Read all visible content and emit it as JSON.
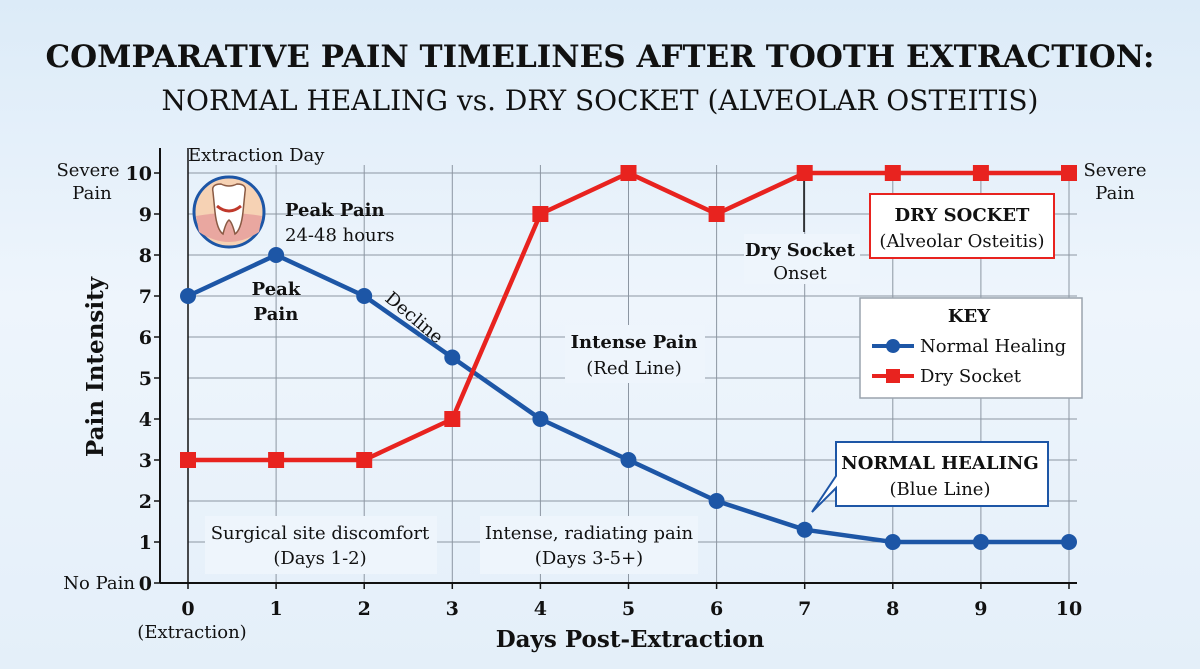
{
  "chart_data": {
    "type": "line",
    "title": "COMPARATIVE PAIN TIMELINES AFTER TOOTH EXTRACTION:",
    "subtitle": "NORMAL HEALING vs. DRY SOCKET (ALVEOLAR OSTEITIS)",
    "xlabel": "Days Post-Extraction",
    "ylabel": "Pain Intensity",
    "x": [
      0,
      1,
      2,
      3,
      4,
      5,
      6,
      7,
      8,
      9,
      10
    ],
    "x_tick_labels": [
      "0",
      "1",
      "2",
      "3",
      "4",
      "5",
      "6",
      "7",
      "8",
      "9",
      "10"
    ],
    "x_sub_label": "(Extraction)",
    "xlim": [
      0,
      10
    ],
    "ylim": [
      0,
      10
    ],
    "y_ticks": [
      0,
      1,
      2,
      3,
      4,
      5,
      6,
      7,
      8,
      9,
      10
    ],
    "y_top_label": [
      "Severe",
      "Pain"
    ],
    "y_bottom_label": "No Pain",
    "right_top_label": [
      "Severe",
      "Pain"
    ],
    "grid": true,
    "legend_position": "right",
    "legend_title": "KEY",
    "series": [
      {
        "name": "Normal Healing",
        "color": "#1d56a6",
        "marker": "circle",
        "values": [
          7,
          8,
          7,
          5.5,
          4,
          3,
          2,
          1.3,
          1,
          1,
          1
        ]
      },
      {
        "name": "Dry Socket",
        "color": "#e8231f",
        "marker": "square",
        "values": [
          3,
          3,
          3,
          4,
          9,
          10,
          9,
          10,
          10,
          10,
          10
        ]
      }
    ],
    "annotations": {
      "extraction_day": "Extraction Day",
      "peak_pain_title": "Peak Pain",
      "peak_pain_sub": "24-48 hours",
      "peak_pain_point": [
        "Peak",
        "Pain"
      ],
      "decline": "Decline",
      "intense_pain_title": "Intense Pain",
      "intense_pain_sub": "(Red Line)",
      "dry_socket_onset": [
        "Dry Socket",
        "Onset"
      ],
      "dry_socket_box_title": "DRY SOCKET",
      "dry_socket_box_sub": "(Alveolar Osteitis)",
      "normal_box_title": "NORMAL HEALING",
      "normal_box_sub": "(Blue Line)",
      "surgical_note": [
        "Surgical site discomfort",
        "(Days 1-2)"
      ],
      "radiating_note": [
        "Intense, radiating pain",
        "(Days 3-5+)"
      ]
    },
    "icon": "tooth-socket-icon"
  }
}
